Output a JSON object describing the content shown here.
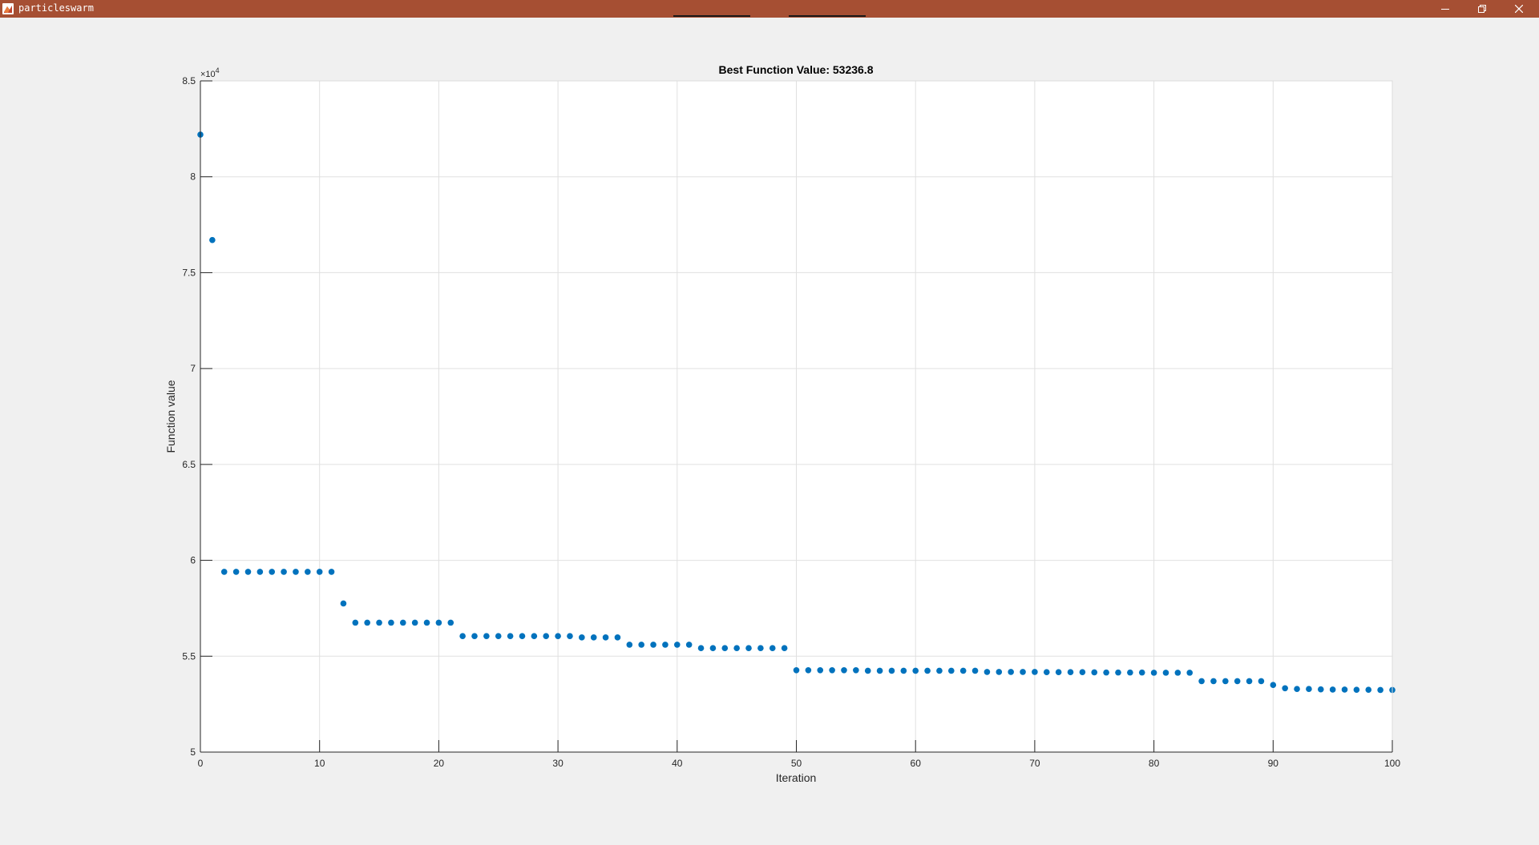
{
  "window": {
    "title": "particleswarm"
  },
  "icons": {
    "app": "matlab-figure-icon",
    "minimize": "minimize-icon",
    "restore": "restore-icon",
    "close": "close-icon"
  },
  "colors": {
    "titlebar": "#a64f33",
    "marker": "#0072bd",
    "grid": "#e0e0e0",
    "axis": "#262626",
    "background": "#f0f0f0"
  },
  "chart_data": {
    "type": "scatter",
    "title": "Best Function Value: 53236.8",
    "xlabel": "Iteration",
    "ylabel": "Function value",
    "exponent_label": "×10",
    "exponent_power": "4",
    "xlim": [
      0,
      100
    ],
    "ylim": [
      5,
      8.5
    ],
    "xticks": [
      0,
      10,
      20,
      30,
      40,
      50,
      60,
      70,
      80,
      90,
      100
    ],
    "yticks": [
      5,
      5.5,
      6,
      6.5,
      7,
      7.5,
      8,
      8.5
    ],
    "ytick_labels": [
      "5",
      "5.5",
      "6",
      "6.5",
      "7",
      "7.5",
      "8",
      "8.5"
    ],
    "grid": true,
    "series": [
      {
        "name": "Best Function Value",
        "x": [
          0,
          1,
          2,
          3,
          4,
          5,
          6,
          7,
          8,
          9,
          10,
          11,
          12,
          13,
          14,
          15,
          16,
          17,
          18,
          19,
          20,
          21,
          22,
          23,
          24,
          25,
          26,
          27,
          28,
          29,
          30,
          31,
          32,
          33,
          34,
          35,
          36,
          37,
          38,
          39,
          40,
          41,
          42,
          43,
          44,
          45,
          46,
          47,
          48,
          49,
          50,
          51,
          52,
          53,
          54,
          55,
          56,
          57,
          58,
          59,
          60,
          61,
          62,
          63,
          64,
          65,
          66,
          67,
          68,
          69,
          70,
          71,
          72,
          73,
          74,
          75,
          76,
          77,
          78,
          79,
          80,
          81,
          82,
          83,
          84,
          85,
          86,
          87,
          88,
          89,
          90,
          91,
          92,
          93,
          94,
          95,
          96,
          97,
          98,
          99,
          100
        ],
        "values": [
          8.22,
          7.67,
          5.94,
          5.94,
          5.94,
          5.94,
          5.94,
          5.94,
          5.94,
          5.94,
          5.94,
          5.94,
          5.775,
          5.675,
          5.675,
          5.675,
          5.675,
          5.675,
          5.675,
          5.675,
          5.675,
          5.675,
          5.605,
          5.605,
          5.605,
          5.605,
          5.605,
          5.605,
          5.605,
          5.605,
          5.605,
          5.605,
          5.598,
          5.598,
          5.598,
          5.598,
          5.56,
          5.56,
          5.56,
          5.56,
          5.56,
          5.56,
          5.542,
          5.542,
          5.542,
          5.542,
          5.542,
          5.542,
          5.542,
          5.542,
          5.427,
          5.427,
          5.427,
          5.427,
          5.427,
          5.427,
          5.424,
          5.424,
          5.424,
          5.424,
          5.424,
          5.424,
          5.424,
          5.424,
          5.424,
          5.424,
          5.418,
          5.418,
          5.418,
          5.418,
          5.418,
          5.417,
          5.417,
          5.417,
          5.417,
          5.416,
          5.415,
          5.415,
          5.415,
          5.415,
          5.414,
          5.414,
          5.414,
          5.414,
          5.37,
          5.37,
          5.37,
          5.37,
          5.37,
          5.37,
          5.35,
          5.333,
          5.329,
          5.329,
          5.327,
          5.326,
          5.326,
          5.325,
          5.325,
          5.324,
          5.324
        ]
      }
    ]
  }
}
